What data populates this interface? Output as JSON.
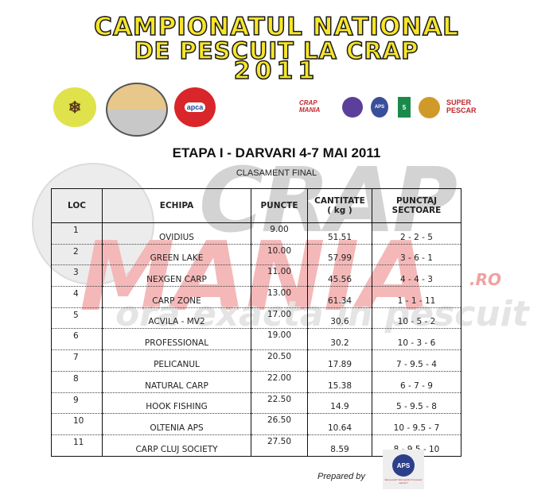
{
  "banner": {
    "title_line1": "CAMPIONATUL NATIONAL",
    "title_line2": "DE PESCUIT LA CRAP",
    "title_line3": "2011",
    "left_logos": [
      "hunting-club-logo",
      "neumarkt-championship-logo",
      "apca-logo"
    ],
    "apca_text": "apca",
    "sponsors": [
      {
        "name": "crapmania-logo",
        "text": "CRAP MANIA",
        "color": "#c0272d"
      },
      {
        "name": "sponsor-crest-logo",
        "text": "",
        "color": "#5b3f9a"
      },
      {
        "name": "aps-logo",
        "text": "APS",
        "color": "#3a4f9a"
      },
      {
        "name": "pv-tv-logo",
        "text": "5",
        "color": "#1a8a4a"
      },
      {
        "name": "crap-club-logo",
        "text": "",
        "color": "#d09a2a"
      },
      {
        "name": "super-pescar-logo",
        "text": "SUPER PESCAR",
        "color": "#c0272d"
      }
    ]
  },
  "watermark": {
    "line1": "CRAP",
    "line2": "MANIA",
    "domain": ".RO",
    "tagline": "ora exacta in pescuit"
  },
  "heading": {
    "title": "ETAPA I - DARVARI 4-7 MAI 2011",
    "subtitle": "CLASAMENT FINAL"
  },
  "table": {
    "headers": {
      "loc": "LOC",
      "echipa": "ECHIPA",
      "puncte": "PUNCTE",
      "cantitate_line1": "CANTITATE",
      "cantitate_line2": "( kg )",
      "punctaj": "PUNCTAJ SECTOARE"
    },
    "rows": [
      {
        "loc": "1",
        "echipa": "OVIDIUS",
        "puncte": "9.00",
        "cantitate": "51.51",
        "punctaj": "2 - 2 - 5"
      },
      {
        "loc": "2",
        "echipa": "GREEN LAKE",
        "puncte": "10.00",
        "cantitate": "57.99",
        "punctaj": "3 - 6 - 1"
      },
      {
        "loc": "3",
        "echipa": "NEXGEN CARP",
        "puncte": "11.00",
        "cantitate": "45.56",
        "punctaj": "4 - 4 - 3"
      },
      {
        "loc": "4",
        "echipa": "CARP ZONE",
        "puncte": "13.00",
        "cantitate": "61.34",
        "punctaj": "1 - 1 - 11"
      },
      {
        "loc": "5",
        "echipa": "ACVILA - MV2",
        "puncte": "17.00",
        "cantitate": "30.6",
        "punctaj": "10 - 5 - 2"
      },
      {
        "loc": "6",
        "echipa": "PROFESSIONAL",
        "puncte": "19.00",
        "cantitate": "30.2",
        "punctaj": "10 - 3 - 6"
      },
      {
        "loc": "7",
        "echipa": "PELICANUL",
        "puncte": "20.50",
        "cantitate": "17.89",
        "punctaj": "7 - 9.5 - 4"
      },
      {
        "loc": "8",
        "echipa": "NATURAL CARP",
        "puncte": "22.00",
        "cantitate": "15.38",
        "punctaj": "6 - 7 - 9"
      },
      {
        "loc": "9",
        "echipa": "HOOK FISHING",
        "puncte": "22.50",
        "cantitate": "14.9",
        "punctaj": "5 - 9.5 - 8"
      },
      {
        "loc": "10",
        "echipa": "OLTENIA APS",
        "puncte": "26.50",
        "cantitate": "10.64",
        "punctaj": "10 - 9.5 - 7"
      },
      {
        "loc": "11",
        "echipa": "CARP CLUJ SOCIETY",
        "puncte": "27.50",
        "cantitate": "8.59",
        "punctaj": "8 - 9.5 - 10"
      }
    ]
  },
  "footer": {
    "prepared_by": "Prepared by",
    "logo_text": "APS",
    "logo_caption": "Esti pescar? Esti sportiv! Fii pescar sportiv!!!"
  }
}
